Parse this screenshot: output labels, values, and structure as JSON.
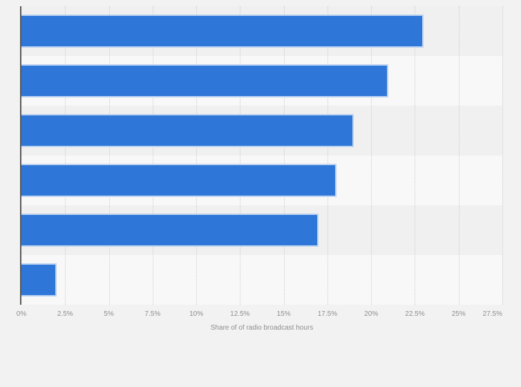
{
  "chart_data": {
    "type": "bar",
    "orientation": "horizontal",
    "values": [
      23,
      21,
      19,
      18,
      17,
      2
    ],
    "unit": "%",
    "xlabel": "Share of of radio broadcast hours",
    "xlim": [
      0,
      27.5
    ],
    "xtick_step": 2.5,
    "xticks": [
      "0%",
      "2.5%",
      "5%",
      "7.5%",
      "10%",
      "12.5%",
      "15%",
      "17.5%",
      "20%",
      "22.5%",
      "25%",
      "27.5%"
    ],
    "grid": true,
    "legend": false,
    "category_axis_labels": [],
    "colors": {
      "bar": "#2e76d8",
      "bar_border": "#bdd3f0",
      "page_background": "#f2f2f2",
      "band_dark": "#f0f0f1",
      "band_light": "#f8f8f9",
      "axis_line": "#58585a",
      "gridline": "#cccccc",
      "tick_text": "#8d8d8d"
    }
  }
}
